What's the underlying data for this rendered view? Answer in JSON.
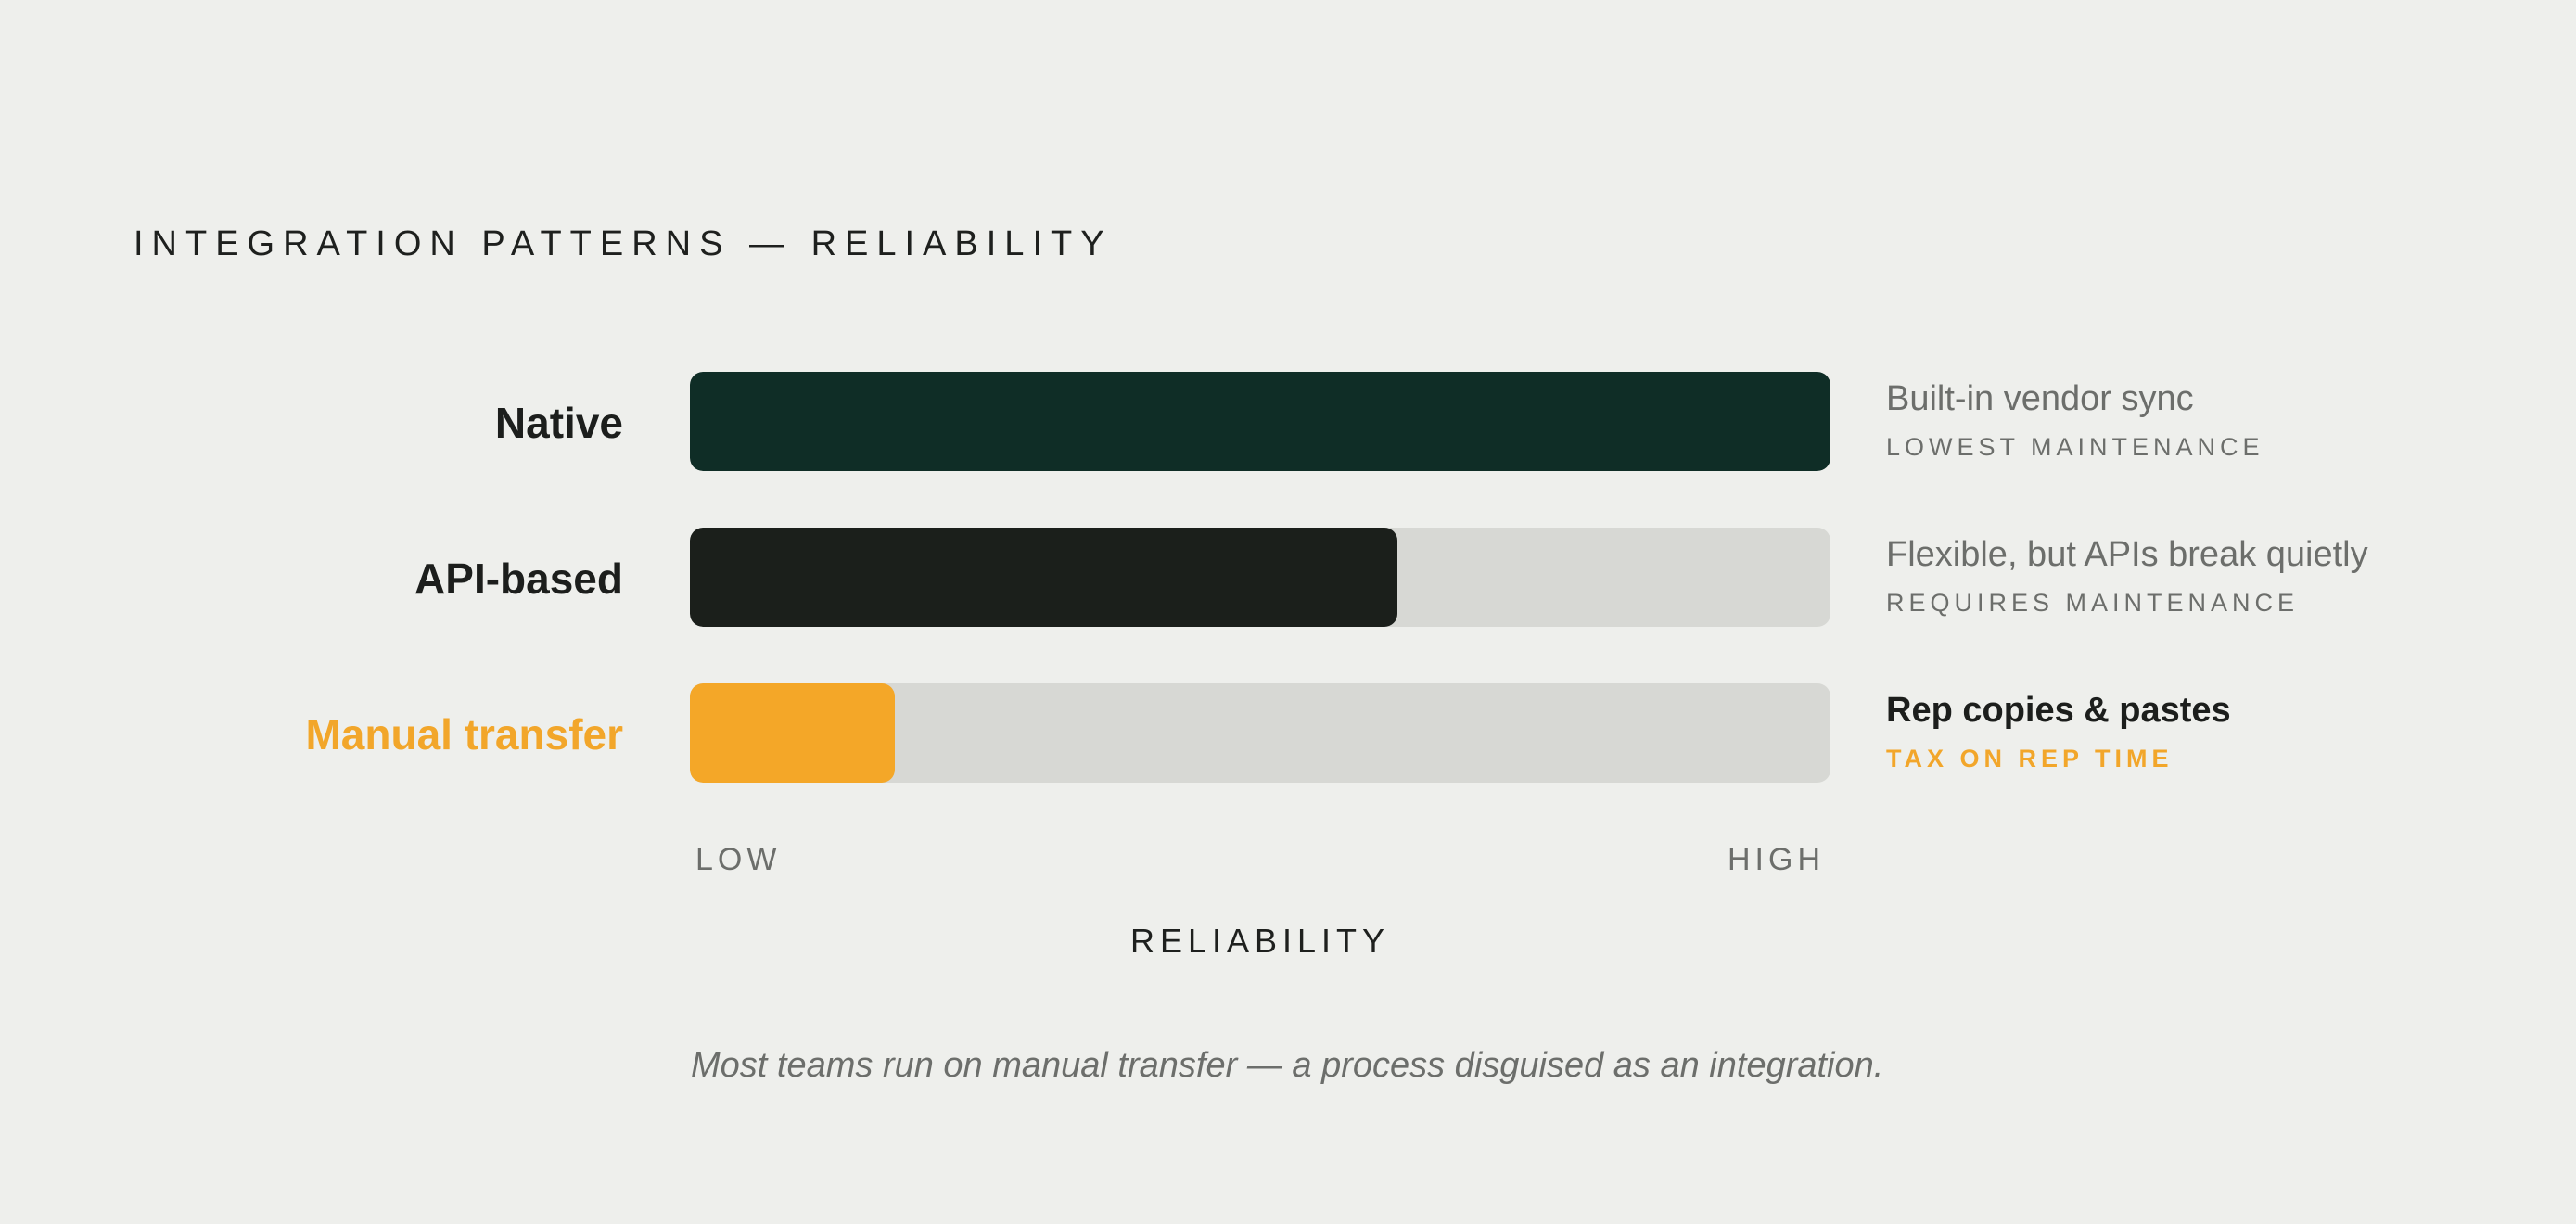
{
  "title": "INTEGRATION PATTERNS — RELIABILITY",
  "chart_data": {
    "type": "bar",
    "orientation": "horizontal",
    "title": "INTEGRATION PATTERNS — RELIABILITY",
    "xlabel": "RELIABILITY",
    "x_ticks": [
      "LOW",
      "HIGH"
    ],
    "xlim": [
      0,
      1
    ],
    "grid": false,
    "categories": [
      "Native",
      "API-based",
      "Manual transfer"
    ],
    "values": [
      1.0,
      0.62,
      0.18
    ],
    "bars": [
      {
        "label": "Native",
        "value": 1.0,
        "color": "#0f2d26",
        "label_color": "#1c1e1c",
        "note": "Built-in vendor sync",
        "subnote": "LOWEST MAINTENANCE",
        "note_emphasis": false
      },
      {
        "label": "API-based",
        "value": 0.62,
        "color": "#1b1f1b",
        "label_color": "#1c1e1c",
        "note": "Flexible, but APIs break quietly",
        "subnote": "REQUIRES MAINTENANCE",
        "note_emphasis": false
      },
      {
        "label": "Manual transfer",
        "value": 0.18,
        "color": "#f4a728",
        "label_color": "#f2a62a",
        "note": "Rep copies & pastes",
        "subnote": "TAX ON REP TIME",
        "note_emphasis": true
      }
    ],
    "track_color": "#d7d8d4"
  },
  "caption": "Most teams run on manual transfer — a process disguised as an integration."
}
